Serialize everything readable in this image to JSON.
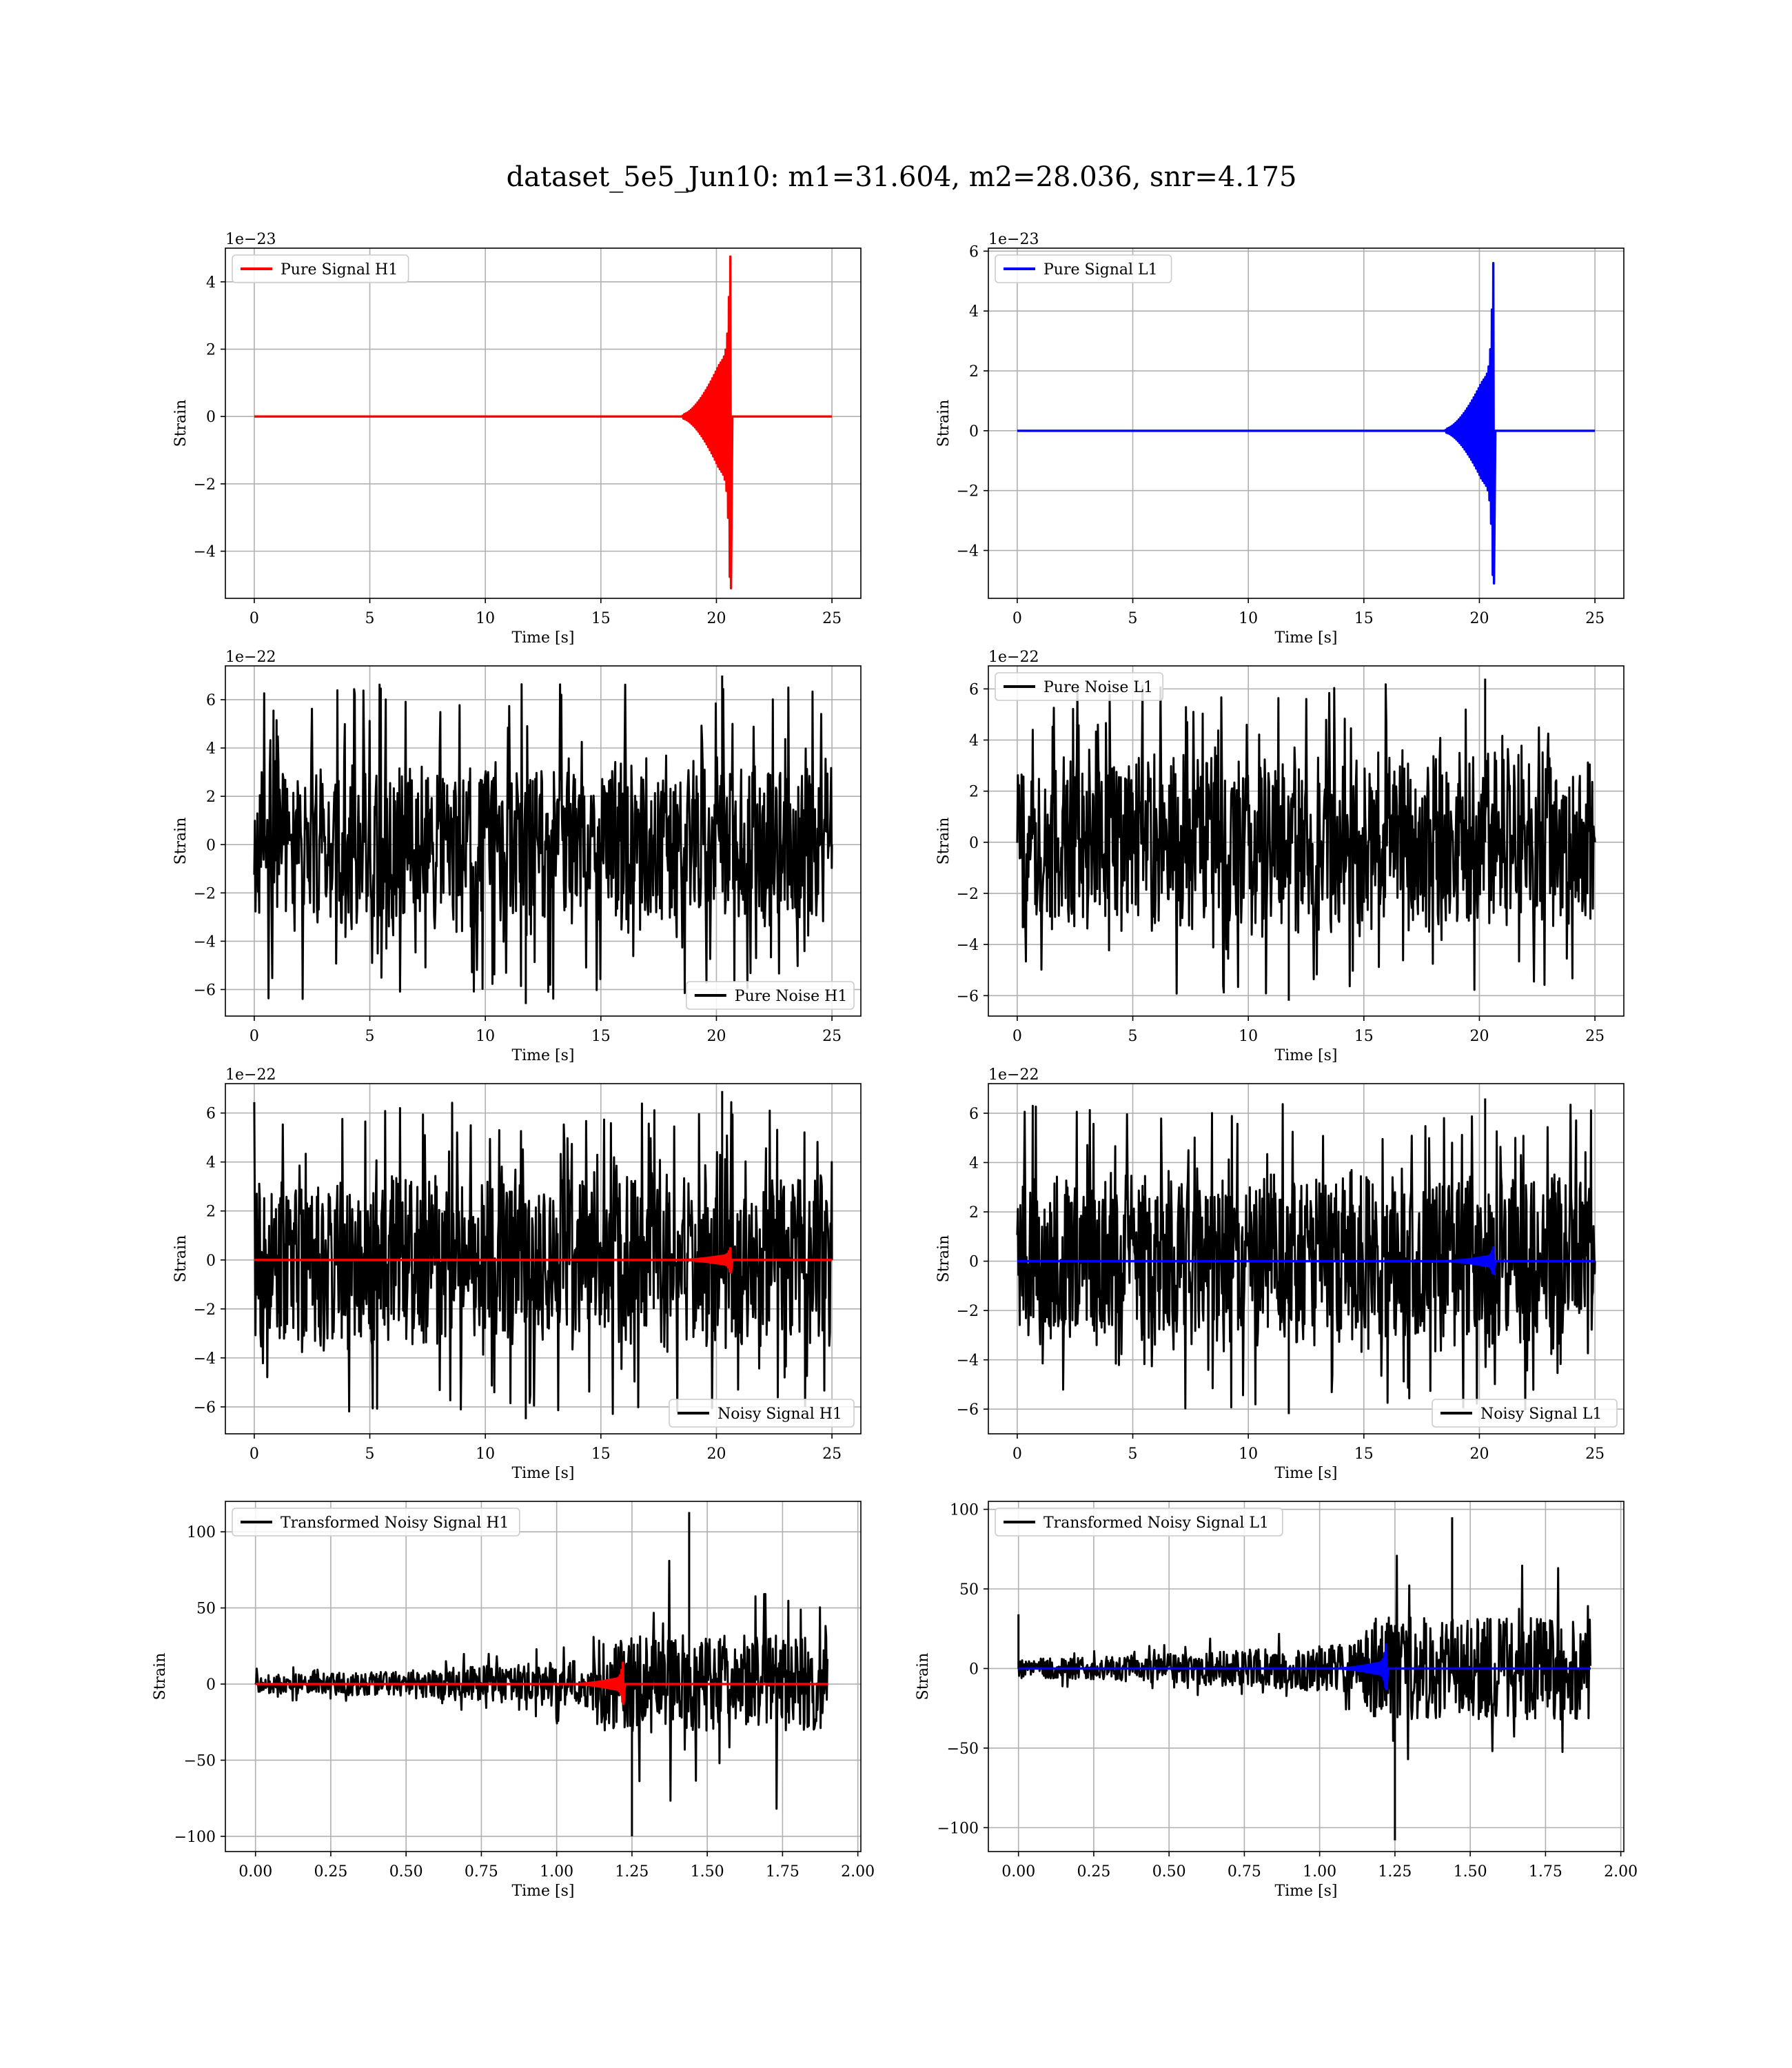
{
  "title": "dataset_5e5_Jun10: m1=31.604, m2=28.036, snr=4.175",
  "chart_data": [
    {
      "type": "line",
      "panel": "pure-signal-h1",
      "xlabel": "Time [s]",
      "ylabel": "Strain",
      "offset_text": "1e−23",
      "xlim": [
        -1.25,
        26.25
      ],
      "ylim": [
        -5.4,
        5.0
      ],
      "xticks": [
        0,
        5,
        10,
        15,
        20,
        25
      ],
      "yticks": [
        -4,
        -2,
        0,
        2,
        4
      ],
      "grid": true,
      "legend_position": "upper left",
      "series": [
        {
          "name": "Pure Signal H1",
          "kind": "chirp",
          "color": "#ff0000",
          "x_range": [
            0,
            25
          ],
          "merger_time": 20.6,
          "peak_pos": 4.75,
          "peak_neg": -5.1,
          "envelope_plateau": 1.5
        }
      ]
    },
    {
      "type": "line",
      "panel": "pure-signal-l1",
      "xlabel": "Time [s]",
      "ylabel": "Strain",
      "offset_text": "1e−23",
      "xlim": [
        -1.25,
        26.25
      ],
      "ylim": [
        -5.6,
        6.1
      ],
      "xticks": [
        0,
        5,
        10,
        15,
        20,
        25
      ],
      "yticks": [
        -4,
        -2,
        0,
        2,
        4,
        6
      ],
      "grid": true,
      "legend_position": "upper left",
      "series": [
        {
          "name": "Pure Signal L1",
          "kind": "chirp",
          "color": "#0000ff",
          "x_range": [
            0,
            25
          ],
          "merger_time": 20.6,
          "peak_pos": 5.6,
          "peak_neg": -5.1,
          "envelope_plateau": 1.6
        }
      ]
    },
    {
      "type": "line",
      "panel": "pure-noise-h1",
      "xlabel": "Time [s]",
      "ylabel": "Strain",
      "offset_text": "1e−22",
      "xlim": [
        -1.25,
        26.25
      ],
      "ylim": [
        -7.1,
        7.4
      ],
      "xticks": [
        0,
        5,
        10,
        15,
        20,
        25
      ],
      "yticks": [
        -6,
        -4,
        -2,
        0,
        2,
        4,
        6
      ],
      "grid": true,
      "legend_position": "lower right",
      "series": [
        {
          "name": "Pure Noise H1",
          "kind": "noise",
          "color": "#000000",
          "x_range": [
            0,
            25
          ],
          "band": [
            -4.0,
            4.0
          ],
          "peak_pos": 7.0,
          "peak_neg": -6.6
        }
      ]
    },
    {
      "type": "line",
      "panel": "pure-noise-l1",
      "xlabel": "Time [s]",
      "ylabel": "Strain",
      "offset_text": "1e−22",
      "xlim": [
        -1.25,
        26.25
      ],
      "ylim": [
        -6.8,
        6.9
      ],
      "xticks": [
        0,
        5,
        10,
        15,
        20,
        25
      ],
      "yticks": [
        -6,
        -4,
        -2,
        0,
        2,
        4,
        6
      ],
      "grid": true,
      "legend_position": "upper left",
      "series": [
        {
          "name": "Pure Noise L1",
          "kind": "noise",
          "color": "#000000",
          "x_range": [
            0,
            25
          ],
          "band": [
            -4.0,
            4.0
          ],
          "peak_pos": 6.4,
          "peak_neg": -6.2
        }
      ]
    },
    {
      "type": "line",
      "panel": "noisy-signal-h1",
      "xlabel": "Time [s]",
      "ylabel": "Strain",
      "offset_text": "1e−22",
      "xlim": [
        -1.25,
        26.25
      ],
      "ylim": [
        -7.1,
        7.2
      ],
      "xticks": [
        0,
        5,
        10,
        15,
        20,
        25
      ],
      "yticks": [
        -6,
        -4,
        -2,
        0,
        2,
        4,
        6
      ],
      "grid": true,
      "legend_position": "lower right",
      "series": [
        {
          "name": "Noisy Signal H1",
          "kind": "noise",
          "color": "#000000",
          "x_range": [
            0,
            25
          ],
          "band": [
            -4.0,
            4.0
          ],
          "peak_pos": 6.9,
          "peak_neg": -6.5
        },
        {
          "name": "",
          "kind": "chirp",
          "color": "#ff0000",
          "x_range": [
            0,
            25
          ],
          "merger_time": 20.6,
          "peak_pos": 0.48,
          "peak_neg": -0.51,
          "envelope_plateau": 0.15
        }
      ]
    },
    {
      "type": "line",
      "panel": "noisy-signal-l1",
      "xlabel": "Time [s]",
      "ylabel": "Strain",
      "offset_text": "1e−22",
      "xlim": [
        -1.25,
        26.25
      ],
      "ylim": [
        -7.0,
        7.2
      ],
      "xticks": [
        0,
        5,
        10,
        15,
        20,
        25
      ],
      "yticks": [
        -6,
        -4,
        -2,
        0,
        2,
        4,
        6
      ],
      "grid": true,
      "legend_position": "lower right",
      "series": [
        {
          "name": "Noisy Signal L1",
          "kind": "noise",
          "color": "#000000",
          "x_range": [
            0,
            25
          ],
          "band": [
            -4.0,
            4.0
          ],
          "peak_pos": 6.6,
          "peak_neg": -6.2
        },
        {
          "name": "",
          "kind": "chirp",
          "color": "#0000ff",
          "x_range": [
            0,
            25
          ],
          "merger_time": 20.6,
          "peak_pos": 0.56,
          "peak_neg": -0.51,
          "envelope_plateau": 0.16
        }
      ]
    },
    {
      "type": "line",
      "panel": "transformed-h1",
      "xlabel": "Time [s]",
      "ylabel": "Strain",
      "offset_text": "",
      "xlim": [
        -0.1,
        2.01
      ],
      "ylim": [
        -110,
        120
      ],
      "xticks": [
        0.0,
        0.25,
        0.5,
        0.75,
        1.0,
        1.25,
        1.5,
        1.75,
        2.0
      ],
      "xtick_labels": [
        "0.00",
        "0.25",
        "0.50",
        "0.75",
        "1.00",
        "1.25",
        "1.50",
        "1.75",
        "2.00"
      ],
      "yticks": [
        -100,
        -50,
        0,
        50,
        100
      ],
      "grid": true,
      "legend_position": "upper left",
      "series": [
        {
          "name": "Transformed Noisy Signal H1",
          "kind": "whitened",
          "color": "#000000",
          "x_range": [
            0,
            1.9
          ],
          "jump_time": 1.12,
          "peak_pos": 113,
          "peak_neg": -100
        },
        {
          "name": "",
          "kind": "chirp",
          "color": "#ff0000",
          "x_range": [
            0,
            1.9
          ],
          "merger_time": 1.22,
          "peak_pos": 14,
          "peak_neg": -13,
          "envelope_plateau": 3
        }
      ]
    },
    {
      "type": "line",
      "panel": "transformed-l1",
      "xlabel": "Time [s]",
      "ylabel": "Strain",
      "offset_text": "",
      "xlim": [
        -0.1,
        2.01
      ],
      "ylim": [
        -115,
        105
      ],
      "xticks": [
        0.0,
        0.25,
        0.5,
        0.75,
        1.0,
        1.25,
        1.5,
        1.75,
        2.0
      ],
      "xtick_labels": [
        "0.00",
        "0.25",
        "0.50",
        "0.75",
        "1.00",
        "1.25",
        "1.50",
        "1.75",
        "2.00"
      ],
      "yticks": [
        -100,
        -50,
        0,
        50,
        100
      ],
      "grid": true,
      "legend_position": "upper left",
      "series": [
        {
          "name": "Transformed Noisy Signal L1",
          "kind": "whitened",
          "color": "#000000",
          "x_range": [
            0,
            1.9
          ],
          "jump_time": 1.12,
          "peak_pos": 95,
          "peak_neg": -108,
          "start_spike": 34
        },
        {
          "name": "",
          "kind": "chirp",
          "color": "#0000ff",
          "x_range": [
            0,
            1.9
          ],
          "merger_time": 1.22,
          "peak_pos": 15,
          "peak_neg": -13,
          "envelope_plateau": 3
        }
      ]
    }
  ]
}
